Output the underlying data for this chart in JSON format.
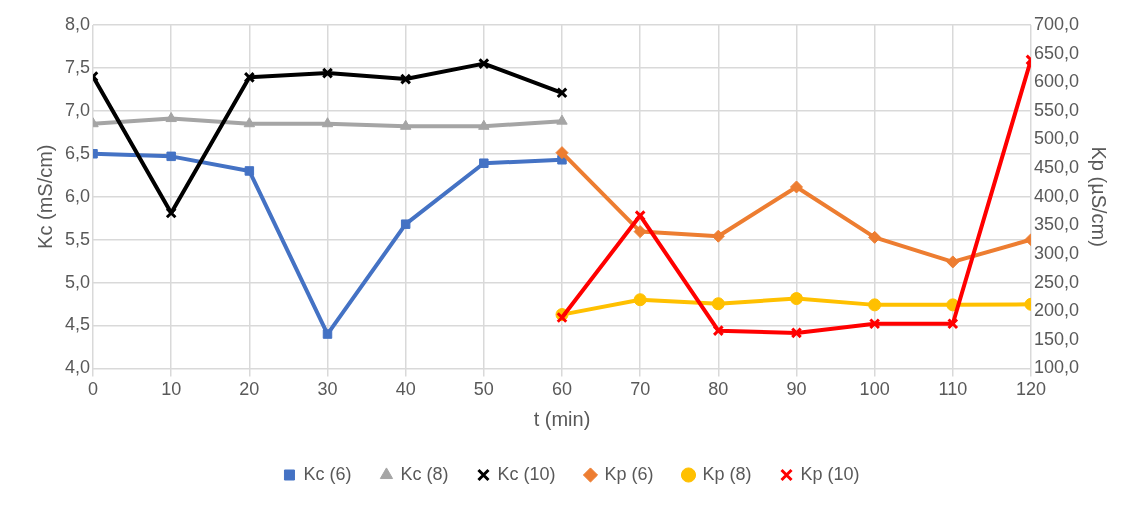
{
  "chart_data": {
    "type": "line",
    "xlabel": "t (min)",
    "ylabel": "Kc (mS/cm)",
    "y2label": "Kp (µS/cm)",
    "xlim": [
      0,
      120
    ],
    "xticks": [
      0,
      10,
      20,
      30,
      40,
      50,
      60,
      70,
      80,
      90,
      100,
      110,
      120
    ],
    "ylim": [
      4,
      8
    ],
    "yticks": [
      {
        "value": 4,
        "label": "4,0"
      },
      {
        "value": 4.5,
        "label": "4,5"
      },
      {
        "value": 5,
        "label": "5,0"
      },
      {
        "value": 5.5,
        "label": "5,5"
      },
      {
        "value": 6,
        "label": "6,0"
      },
      {
        "value": 6.5,
        "label": "6,5"
      },
      {
        "value": 7,
        "label": "7,0"
      },
      {
        "value": 7.5,
        "label": "7,5"
      },
      {
        "value": 8,
        "label": "8,0"
      }
    ],
    "y2lim": [
      100,
      700
    ],
    "y2ticks": [
      {
        "value": 100,
        "label": "100,0"
      },
      {
        "value": 150,
        "label": "150,0"
      },
      {
        "value": 200,
        "label": "200,0"
      },
      {
        "value": 250,
        "label": "250,0"
      },
      {
        "value": 300,
        "label": "300,0"
      },
      {
        "value": 350,
        "label": "350,0"
      },
      {
        "value": 400,
        "label": "400,0"
      },
      {
        "value": 450,
        "label": "450,0"
      },
      {
        "value": 500,
        "label": "500,0"
      },
      {
        "value": 550,
        "label": "550,0"
      },
      {
        "value": 600,
        "label": "600,0"
      },
      {
        "value": 650,
        "label": "650,0"
      },
      {
        "value": 700,
        "label": "700,0"
      }
    ],
    "grid": true,
    "legend": "bottom",
    "line_style": "solid",
    "series": [
      {
        "name": "Kc (6)",
        "color": "#4472c4",
        "marker": "square",
        "x": [
          0,
          10,
          20,
          30,
          40,
          50,
          60
        ],
        "values": [
          6.5,
          6.47,
          6.3,
          4.4,
          5.68,
          6.39,
          6.43
        ]
      },
      {
        "name": "Kc (8)",
        "color": "#a5a5a5",
        "marker": "triangle",
        "x": [
          0,
          10,
          20,
          30,
          40,
          50,
          60
        ],
        "values": [
          6.85,
          6.91,
          6.85,
          6.85,
          6.82,
          6.82,
          6.88
        ]
      },
      {
        "name": "Kc (10)",
        "color": "#000000",
        "marker": "cross",
        "x": [
          0,
          10,
          20,
          30,
          40,
          50,
          60
        ],
        "values": [
          7.4,
          5.81,
          7.39,
          7.44,
          7.37,
          7.55,
          7.21
        ]
      },
      {
        "name": "Kp (6)",
        "color": "#ed7d31",
        "marker": "diamond",
        "axis": "y2",
        "x": [
          60,
          70,
          80,
          90,
          100,
          110,
          120
        ],
        "values": [
          477,
          339,
          331,
          417,
          329,
          286,
          325
        ]
      },
      {
        "name": "Kp (8)",
        "color": "#ffc000",
        "marker": "circle",
        "axis": "y2",
        "x": [
          60,
          70,
          80,
          90,
          100,
          110,
          120
        ],
        "values": [
          194,
          220,
          213,
          222,
          211,
          211,
          212
        ]
      },
      {
        "name": "Kp (10)",
        "color": "#ff0000",
        "marker": "cross",
        "axis": "y2",
        "x": [
          60,
          70,
          80,
          90,
          100,
          110,
          120
        ],
        "values": [
          189,
          367,
          166,
          162,
          178,
          178,
          639
        ]
      }
    ]
  }
}
